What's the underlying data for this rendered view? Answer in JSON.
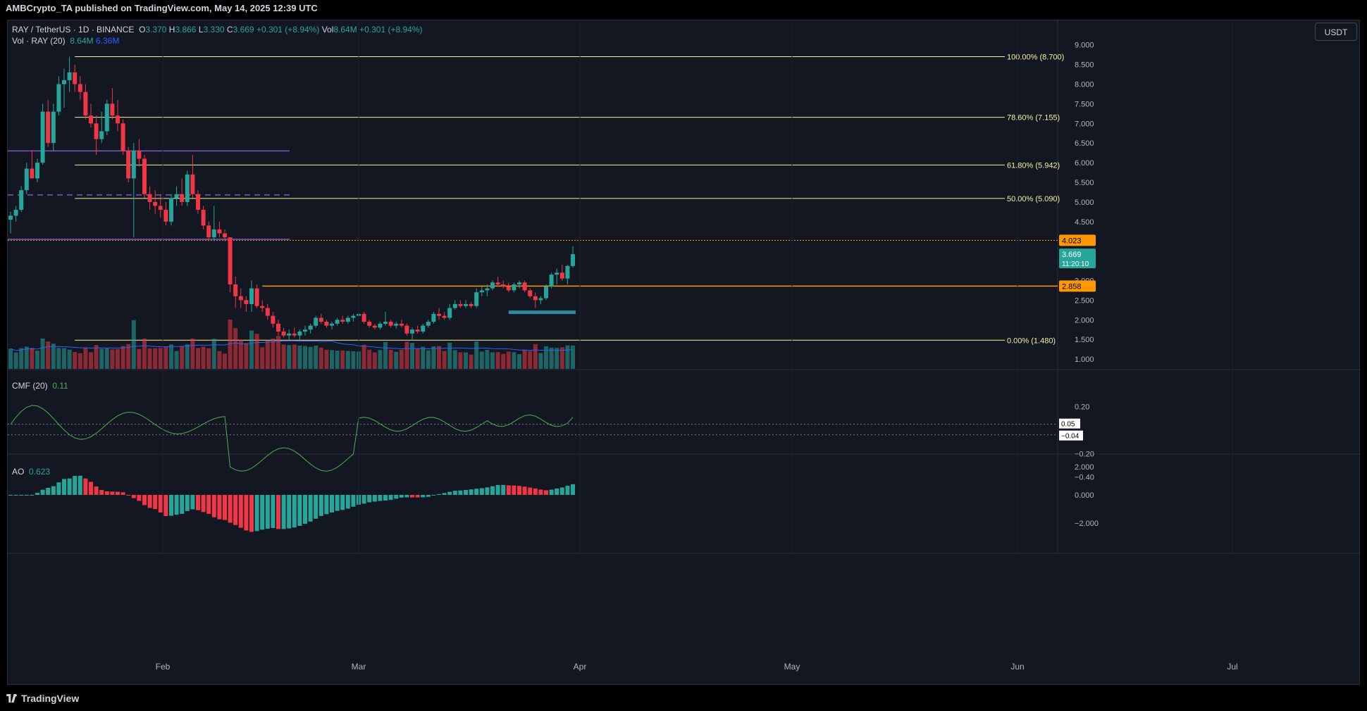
{
  "header": {
    "publisher_text": "AMBCrypto_TA published on TradingView.com, May 14, 2025 12:39 UTC"
  },
  "footer": {
    "brand": "TradingView"
  },
  "currency_button": "USDT",
  "legend": {
    "symbol": "RAY / TetherUS · 1D · BINANCE",
    "o_label": "O",
    "o_val": "3.370",
    "h_label": "H",
    "h_val": "3.866",
    "l_label": "L",
    "l_val": "3.330",
    "c_label": "C",
    "c_val": "3.669",
    "change": "+0.301 (+8.94%)",
    "vol_label": "Vol",
    "vol_val": "8.64M",
    "vol_change": "+0.301 (+8.94%)",
    "vol_line": "Vol · RAY (20)",
    "vol_v1": "8.64M",
    "vol_v2": "6.36M",
    "cmf_label": "CMF (20)",
    "cmf_val": "0.11",
    "ao_label": "AO",
    "ao_val": "0.623"
  },
  "colors": {
    "up": "#26a69a",
    "down": "#f23645",
    "fib": "#f6f2a0",
    "purple": "#7e57c2",
    "orange": "#ff9800",
    "cmf": "#4caf50",
    "volma": "#2962ff"
  },
  "price_axis": [
    "9.000",
    "8.500",
    "8.000",
    "7.500",
    "7.000",
    "6.500",
    "6.000",
    "5.500",
    "5.000",
    "4.500",
    "4.000",
    "3.500",
    "3.000",
    "2.500",
    "2.000",
    "1.500",
    "1.000"
  ],
  "price_tags": {
    "last": "3.669",
    "countdown": "11:20:10",
    "level_4023": "4.023",
    "level_2858": "2.858"
  },
  "cmf_axis": [
    "0.20",
    "−0.20",
    "−0.40"
  ],
  "cmf_tags": [
    "0.05",
    "−0.04"
  ],
  "ao_axis": [
    "2.000",
    "0.000",
    "−2.000"
  ],
  "time_axis": [
    "Feb",
    "Mar",
    "Apr",
    "May",
    "Jun",
    "Jul"
  ],
  "fib_labels": [
    "100.00% (8.700)",
    "78.60% (7.155)",
    "61.80% (5.942)",
    "50.00% (5.090)",
    "0.00% (1.480)"
  ],
  "chart_data": {
    "type": "candlestick",
    "symbol": "RAY/USDT",
    "timeframe": "1D",
    "candles_ohlc": [
      [
        4.55,
        4.75,
        4.2,
        4.65
      ],
      [
        4.65,
        4.9,
        4.5,
        4.8
      ],
      [
        4.8,
        5.4,
        4.75,
        5.3
      ],
      [
        5.3,
        6.0,
        5.2,
        5.85
      ],
      [
        5.85,
        6.3,
        5.6,
        5.6
      ],
      [
        5.6,
        6.1,
        5.5,
        6.0
      ],
      [
        6.0,
        7.5,
        5.95,
        7.3
      ],
      [
        7.3,
        7.6,
        6.4,
        6.5
      ],
      [
        6.5,
        7.5,
        6.3,
        7.3
      ],
      [
        7.3,
        8.2,
        7.2,
        8.0
      ],
      [
        8.0,
        8.4,
        7.4,
        8.1
      ],
      [
        8.1,
        8.7,
        7.8,
        8.3
      ],
      [
        8.3,
        8.5,
        7.8,
        8.0
      ],
      [
        8.0,
        8.2,
        7.6,
        7.8
      ],
      [
        7.8,
        8.0,
        7.1,
        7.2
      ],
      [
        7.2,
        7.5,
        6.9,
        7.0
      ],
      [
        7.0,
        7.2,
        6.2,
        6.6
      ],
      [
        6.6,
        7.3,
        6.5,
        6.8
      ],
      [
        6.8,
        7.6,
        6.7,
        7.5
      ],
      [
        7.5,
        7.9,
        7.1,
        7.2
      ],
      [
        7.2,
        7.6,
        6.8,
        7.0
      ],
      [
        7.0,
        7.1,
        6.2,
        6.3
      ],
      [
        6.3,
        6.4,
        5.5,
        5.6
      ],
      [
        5.6,
        6.5,
        4.1,
        6.3
      ],
      [
        6.3,
        6.6,
        5.9,
        6.1
      ],
      [
        6.1,
        6.2,
        5.1,
        5.2
      ],
      [
        5.2,
        5.4,
        4.8,
        5.0
      ],
      [
        5.0,
        5.3,
        4.7,
        4.9
      ],
      [
        4.9,
        5.2,
        4.6,
        4.8
      ],
      [
        4.8,
        5.0,
        4.4,
        4.5
      ],
      [
        4.5,
        5.2,
        4.4,
        5.1
      ],
      [
        5.1,
        5.4,
        4.9,
        5.2
      ],
      [
        5.2,
        5.6,
        4.9,
        5.0
      ],
      [
        5.0,
        5.8,
        4.9,
        5.7
      ],
      [
        5.7,
        6.2,
        5.1,
        5.2
      ],
      [
        5.2,
        5.3,
        4.7,
        4.8
      ],
      [
        4.8,
        4.9,
        4.3,
        4.4
      ],
      [
        4.4,
        4.5,
        4.0,
        4.1
      ],
      [
        4.1,
        4.9,
        4.0,
        4.3
      ],
      [
        4.3,
        4.5,
        4.1,
        4.2
      ],
      [
        4.2,
        4.3,
        4.0,
        4.1
      ],
      [
        4.1,
        4.1,
        2.7,
        2.9
      ],
      [
        2.9,
        3.1,
        2.3,
        2.6
      ],
      [
        2.6,
        2.8,
        2.3,
        2.5
      ],
      [
        2.5,
        2.6,
        2.2,
        2.4
      ],
      [
        2.4,
        3.0,
        2.2,
        2.8
      ],
      [
        2.8,
        2.9,
        2.3,
        2.35
      ],
      [
        2.35,
        2.5,
        2.2,
        2.3
      ],
      [
        2.3,
        2.4,
        2.0,
        2.1
      ],
      [
        2.1,
        2.2,
        1.8,
        1.9
      ],
      [
        1.9,
        2.0,
        1.6,
        1.7
      ],
      [
        1.7,
        1.8,
        1.55,
        1.6
      ],
      [
        1.6,
        1.75,
        1.5,
        1.65
      ],
      [
        1.65,
        1.8,
        1.55,
        1.6
      ],
      [
        1.6,
        1.75,
        1.5,
        1.7
      ],
      [
        1.7,
        1.85,
        1.6,
        1.75
      ],
      [
        1.75,
        1.9,
        1.65,
        1.85
      ],
      [
        1.85,
        2.1,
        1.8,
        2.05
      ],
      [
        2.05,
        2.15,
        1.9,
        1.95
      ],
      [
        1.95,
        2.0,
        1.8,
        1.85
      ],
      [
        1.85,
        1.95,
        1.75,
        1.9
      ],
      [
        1.9,
        2.05,
        1.85,
        2.0
      ],
      [
        2.0,
        2.1,
        1.9,
        1.95
      ],
      [
        1.95,
        2.1,
        1.9,
        2.05
      ],
      [
        2.05,
        2.15,
        1.95,
        2.1
      ],
      [
        2.1,
        2.2,
        2.0,
        2.15
      ],
      [
        2.15,
        2.2,
        1.9,
        1.95
      ],
      [
        1.95,
        2.0,
        1.8,
        1.85
      ],
      [
        1.85,
        1.9,
        1.75,
        1.8
      ],
      [
        1.8,
        1.95,
        1.75,
        1.9
      ],
      [
        1.9,
        2.2,
        1.85,
        1.95
      ],
      [
        1.95,
        2.0,
        1.8,
        1.85
      ],
      [
        1.85,
        1.95,
        1.78,
        1.9
      ],
      [
        1.9,
        2.0,
        1.8,
        1.85
      ],
      [
        1.85,
        1.9,
        1.6,
        1.65
      ],
      [
        1.65,
        1.8,
        1.5,
        1.75
      ],
      [
        1.75,
        1.85,
        1.65,
        1.7
      ],
      [
        1.7,
        1.9,
        1.65,
        1.85
      ],
      [
        1.85,
        2.0,
        1.8,
        1.95
      ],
      [
        1.95,
        2.2,
        1.9,
        2.15
      ],
      [
        2.15,
        2.3,
        2.0,
        2.1
      ],
      [
        2.1,
        2.2,
        2.0,
        2.05
      ],
      [
        2.05,
        2.4,
        2.0,
        2.3
      ],
      [
        2.3,
        2.5,
        2.25,
        2.4
      ],
      [
        2.4,
        2.5,
        2.3,
        2.35
      ],
      [
        2.35,
        2.5,
        2.3,
        2.4
      ],
      [
        2.4,
        2.45,
        2.3,
        2.35
      ],
      [
        2.35,
        2.8,
        2.3,
        2.7
      ],
      [
        2.7,
        2.85,
        2.6,
        2.75
      ],
      [
        2.75,
        2.9,
        2.6,
        2.8
      ],
      [
        2.8,
        3.0,
        2.75,
        2.95
      ],
      [
        2.95,
        3.1,
        2.85,
        2.9
      ],
      [
        2.9,
        3.0,
        2.8,
        2.85
      ],
      [
        2.85,
        2.95,
        2.7,
        2.75
      ],
      [
        2.75,
        2.95,
        2.7,
        2.9
      ],
      [
        2.9,
        3.0,
        2.8,
        2.95
      ],
      [
        2.95,
        3.0,
        2.7,
        2.75
      ],
      [
        2.75,
        2.8,
        2.55,
        2.6
      ],
      [
        2.6,
        2.7,
        2.3,
        2.5
      ],
      [
        2.5,
        2.6,
        2.4,
        2.55
      ],
      [
        2.55,
        2.9,
        2.5,
        2.85
      ],
      [
        2.85,
        3.2,
        2.8,
        3.15
      ],
      [
        3.15,
        3.3,
        2.9,
        3.2
      ],
      [
        3.2,
        3.4,
        3.0,
        3.05
      ],
      [
        3.05,
        3.4,
        2.9,
        3.37
      ],
      [
        3.37,
        3.87,
        3.33,
        3.67
      ]
    ],
    "volume_ma_label": "Vol · RAY (20)",
    "cmf": {
      "period": 20,
      "last": 0.11,
      "levels": [
        0.05,
        -0.04
      ]
    },
    "ao": {
      "last": 0.623
    },
    "fib_levels": [
      {
        "label": "100.00% (8.700)",
        "price": 8.7
      },
      {
        "label": "78.60% (7.155)",
        "price": 7.155
      },
      {
        "label": "61.80% (5.942)",
        "price": 5.942
      },
      {
        "label": "50.00% (5.090)",
        "price": 5.09
      },
      {
        "label": "0.00% (1.480)",
        "price": 1.48
      }
    ],
    "horizontal_levels": [
      {
        "price": 4.023,
        "color": "orange",
        "style": "dotted"
      },
      {
        "price": 2.858,
        "color": "orange",
        "style": "solid"
      },
      {
        "price": 6.3,
        "color": "purple",
        "style": "solid"
      },
      {
        "price": 5.18,
        "color": "purple",
        "style": "dashed"
      },
      {
        "price": 4.05,
        "color": "purple",
        "style": "solid"
      }
    ],
    "support_zone": 2.2,
    "yrange": [
      0.75,
      9.3
    ],
    "x_ticks": [
      "Feb",
      "Mar",
      "Apr",
      "May",
      "Jun",
      "Jul"
    ]
  }
}
